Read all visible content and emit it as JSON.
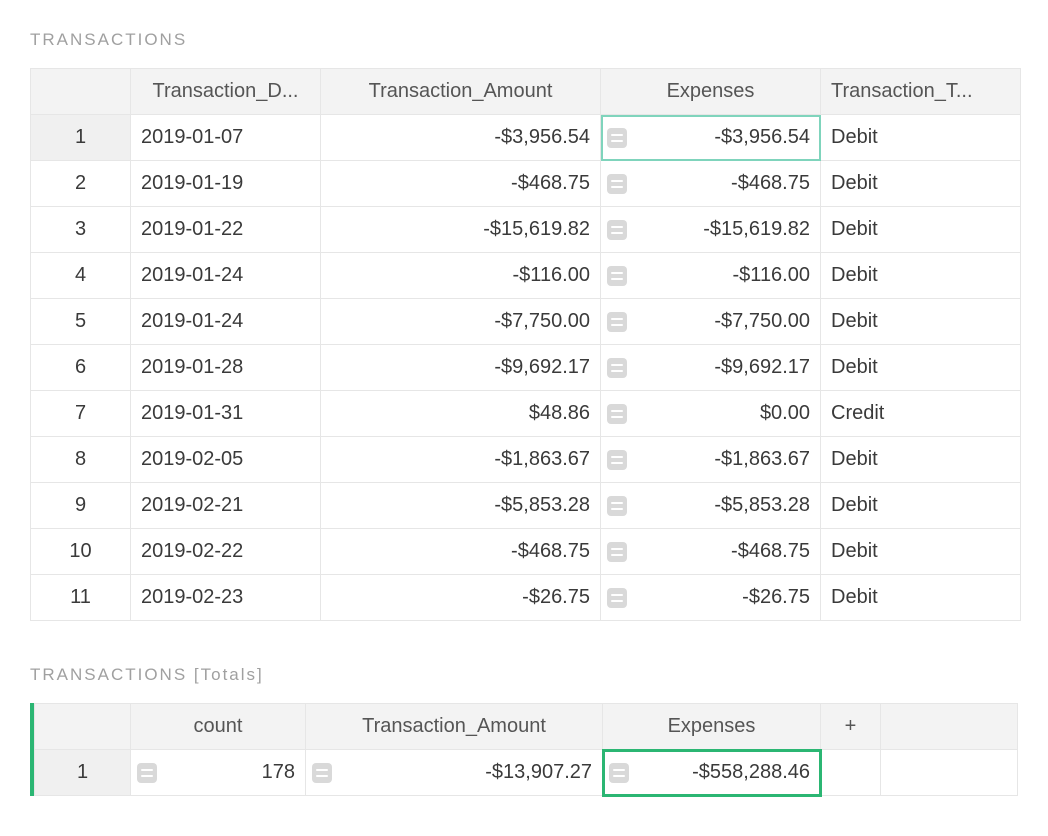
{
  "transactions_section": {
    "title": "TRANSACTIONS",
    "columns": {
      "rownum": "",
      "date": "Transaction_D...",
      "amount": "Transaction_Amount",
      "expenses": "Expenses",
      "type": "Transaction_T..."
    },
    "rows": [
      {
        "n": "1",
        "date": "2019-01-07",
        "amount": "-$3,956.54",
        "expenses": "-$3,956.54",
        "type": "Debit"
      },
      {
        "n": "2",
        "date": "2019-01-19",
        "amount": "-$468.75",
        "expenses": "-$468.75",
        "type": "Debit"
      },
      {
        "n": "3",
        "date": "2019-01-22",
        "amount": "-$15,619.82",
        "expenses": "-$15,619.82",
        "type": "Debit"
      },
      {
        "n": "4",
        "date": "2019-01-24",
        "amount": "-$116.00",
        "expenses": "-$116.00",
        "type": "Debit"
      },
      {
        "n": "5",
        "date": "2019-01-24",
        "amount": "-$7,750.00",
        "expenses": "-$7,750.00",
        "type": "Debit"
      },
      {
        "n": "6",
        "date": "2019-01-28",
        "amount": "-$9,692.17",
        "expenses": "-$9,692.17",
        "type": "Debit"
      },
      {
        "n": "7",
        "date": "2019-01-31",
        "amount": "$48.86",
        "expenses": "$0.00",
        "type": "Credit"
      },
      {
        "n": "8",
        "date": "2019-02-05",
        "amount": "-$1,863.67",
        "expenses": "-$1,863.67",
        "type": "Debit"
      },
      {
        "n": "9",
        "date": "2019-02-21",
        "amount": "-$5,853.28",
        "expenses": "-$5,853.28",
        "type": "Debit"
      },
      {
        "n": "10",
        "date": "2019-02-22",
        "amount": "-$468.75",
        "expenses": "-$468.75",
        "type": "Debit"
      },
      {
        "n": "11",
        "date": "2019-02-23",
        "amount": "-$26.75",
        "expenses": "-$26.75",
        "type": "Debit"
      }
    ]
  },
  "totals_section": {
    "title": "TRANSACTIONS [Totals]",
    "columns": {
      "rownum": "",
      "count": "count",
      "amount": "Transaction_Amount",
      "expenses": "Expenses",
      "plus": "+"
    },
    "row": {
      "n": "1",
      "count": "178",
      "amount": "-$13,907.27",
      "expenses": "-$558,288.46"
    }
  },
  "style": {
    "border_color": "#e6e6e6",
    "header_bg": "#f3f3f3",
    "text_color": "#3a3a3a",
    "muted_text": "#a0a0a0",
    "highlight_light": "#7fd4bc",
    "highlight_strong": "#2bb673",
    "formula_icon_bg": "#d9d9d9"
  }
}
